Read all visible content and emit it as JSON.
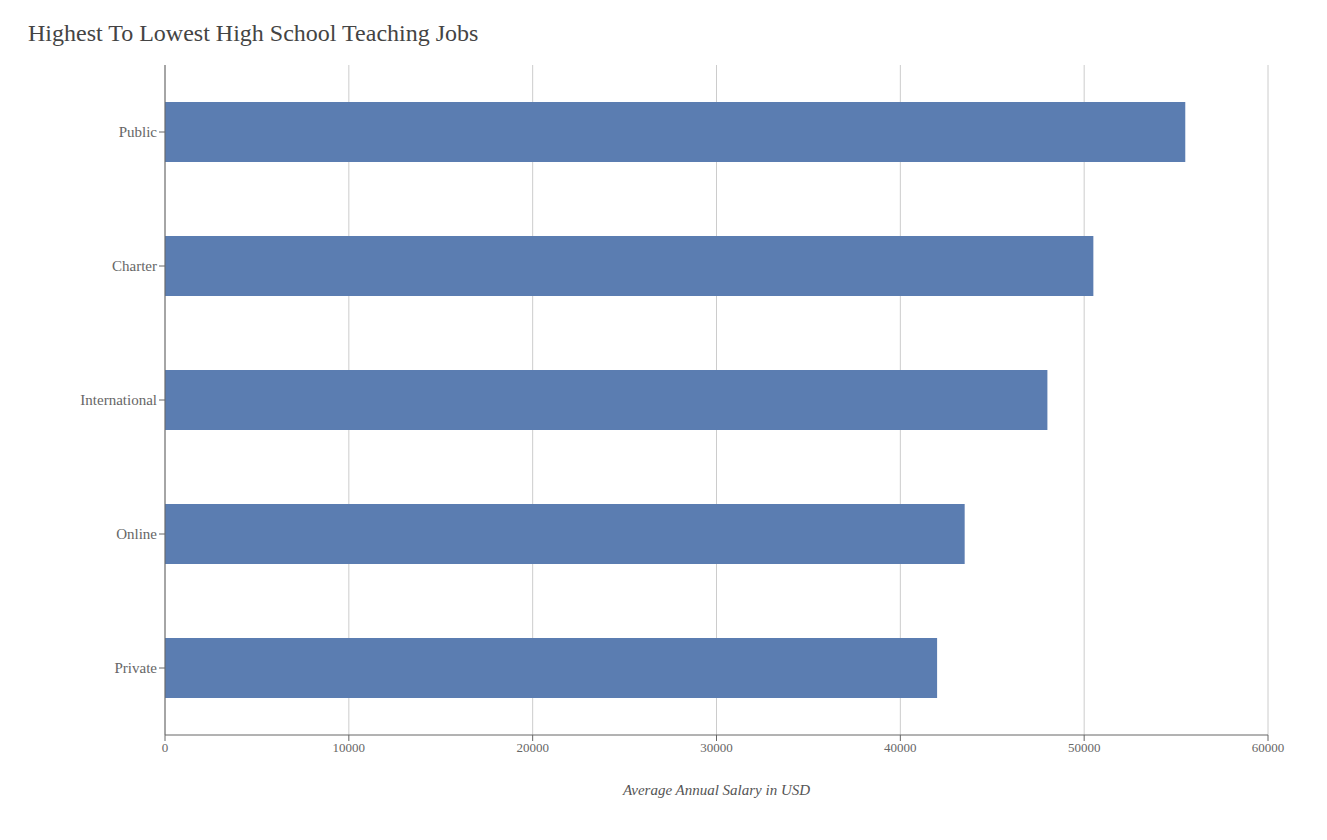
{
  "chart_data": {
    "type": "bar",
    "orientation": "horizontal",
    "title": "Highest To Lowest High School Teaching Jobs",
    "categories": [
      "Public",
      "Charter",
      "International",
      "Online",
      "Private"
    ],
    "values": [
      55500,
      50500,
      48000,
      43500,
      42000
    ],
    "color": "#5b7db1",
    "xlabel": "Average Annual Salary in USD",
    "xlim": [
      0,
      60000
    ],
    "xticks": [
      0,
      10000,
      20000,
      30000,
      40000,
      50000,
      60000
    ],
    "grid": "x"
  }
}
